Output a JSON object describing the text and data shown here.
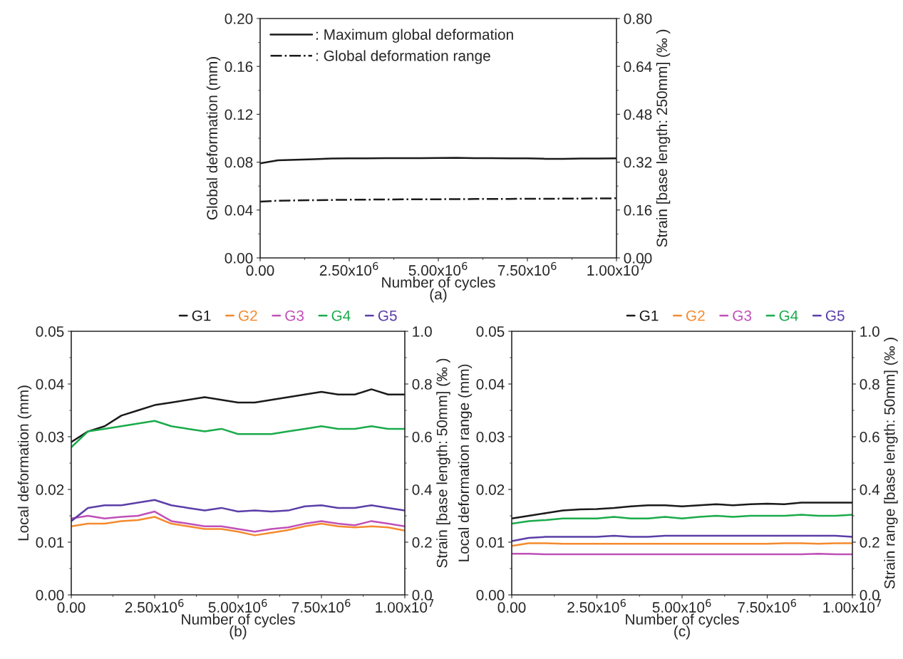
{
  "chart_data": [
    {
      "type": "line",
      "xlabel": "Number of cycles",
      "ylabel": "Global deformation (mm)",
      "y2label": "Strain [base length: 250mm] (‰ )",
      "annotations": [
        "(a)"
      ],
      "x": [
        0,
        500000,
        1000000,
        1500000,
        2000000,
        2500000,
        3000000,
        3500000,
        4000000,
        4500000,
        5000000,
        5500000,
        6000000,
        6500000,
        7000000,
        7500000,
        8000000,
        8500000,
        9000000,
        9500000,
        10000000
      ],
      "series": [
        {
          "name": ": Maximum global deformation",
          "color": "#1a1a1a",
          "line_style": "solid",
          "values": [
            0.079,
            0.0815,
            0.082,
            0.0825,
            0.083,
            0.0832,
            0.0832,
            0.0833,
            0.0833,
            0.0834,
            0.0835,
            0.0836,
            0.0833,
            0.0833,
            0.0832,
            0.0832,
            0.0828,
            0.0828,
            0.083,
            0.083,
            0.0832
          ]
        },
        {
          "name": ": Global deformation range",
          "color": "#1a1a1a",
          "line_style": "dashdot",
          "values": [
            0.047,
            0.0478,
            0.048,
            0.0482,
            0.0484,
            0.0486,
            0.0487,
            0.0488,
            0.0489,
            0.049,
            0.049,
            0.0491,
            0.0492,
            0.0492,
            0.0493,
            0.0494,
            0.0494,
            0.0495,
            0.0496,
            0.0497,
            0.0498
          ]
        }
      ],
      "xlim": [
        0,
        10000000
      ],
      "xticks": [
        {
          "value": 0,
          "label": "0.00"
        },
        {
          "value": 2500000,
          "label": "2.50x10$^{6}$"
        },
        {
          "value": 5000000,
          "label": "5.00x10$^{6}$"
        },
        {
          "value": 7500000,
          "label": "7.50x10$^{6}$"
        },
        {
          "value": 10000000,
          "label": "1.00x10$^{7}$"
        }
      ],
      "ylim": [
        0,
        0.2
      ],
      "yticks": [
        {
          "value": 0,
          "label": "0.00"
        },
        {
          "value": 0.04,
          "label": "0.04"
        },
        {
          "value": 0.08,
          "label": "0.08"
        },
        {
          "value": 0.12,
          "label": "0.12"
        },
        {
          "value": 0.16,
          "label": "0.16"
        },
        {
          "value": 0.2,
          "label": "0.20"
        }
      ],
      "y2lim": [
        0,
        0.8
      ],
      "y2ticks": [
        {
          "value": 0,
          "label": "0.00"
        },
        {
          "value": 0.16,
          "label": "0.16"
        },
        {
          "value": 0.32,
          "label": "0.32"
        },
        {
          "value": 0.48,
          "label": "0.48"
        },
        {
          "value": 0.64,
          "label": "0.64"
        },
        {
          "value": 0.8,
          "label": "0.80"
        }
      ],
      "legend": "top left",
      "grid": false
    },
    {
      "type": "line",
      "xlabel": "Number of cycles",
      "ylabel": "Local deformation (mm)",
      "y2label": "Strain [base length: 50mm] (‰ )",
      "annotations": [
        "(b)"
      ],
      "x": [
        0,
        500000,
        1000000,
        1500000,
        2000000,
        2500000,
        3000000,
        3500000,
        4000000,
        4500000,
        5000000,
        5500000,
        6000000,
        6500000,
        7000000,
        7500000,
        8000000,
        8500000,
        9000000,
        9500000,
        10000000
      ],
      "series": [
        {
          "name": "G1",
          "color": "#1a1a1a",
          "values": [
            0.029,
            0.031,
            0.032,
            0.034,
            0.035,
            0.036,
            0.0365,
            0.037,
            0.0375,
            0.037,
            0.0365,
            0.0365,
            0.037,
            0.0375,
            0.038,
            0.0385,
            0.038,
            0.038,
            0.039,
            0.038,
            0.038
          ]
        },
        {
          "name": "G2",
          "color": "#f58a2e",
          "values": [
            0.013,
            0.0135,
            0.0135,
            0.014,
            0.0142,
            0.0148,
            0.0135,
            0.013,
            0.0125,
            0.0125,
            0.012,
            0.0113,
            0.0118,
            0.0123,
            0.013,
            0.0135,
            0.013,
            0.0128,
            0.013,
            0.0128,
            0.0122
          ]
        },
        {
          "name": "G3",
          "color": "#c050b8",
          "values": [
            0.0145,
            0.015,
            0.0145,
            0.0148,
            0.015,
            0.0158,
            0.014,
            0.0135,
            0.013,
            0.013,
            0.0125,
            0.012,
            0.0125,
            0.0128,
            0.0135,
            0.014,
            0.0135,
            0.0132,
            0.014,
            0.0135,
            0.013
          ]
        },
        {
          "name": "G4",
          "color": "#1aab4b",
          "values": [
            0.028,
            0.031,
            0.0315,
            0.032,
            0.0325,
            0.033,
            0.032,
            0.0315,
            0.031,
            0.0315,
            0.0305,
            0.0305,
            0.0305,
            0.031,
            0.0315,
            0.032,
            0.0315,
            0.0315,
            0.032,
            0.0315,
            0.0315
          ]
        },
        {
          "name": "G5",
          "color": "#5b3ea8",
          "values": [
            0.014,
            0.0165,
            0.017,
            0.017,
            0.0175,
            0.018,
            0.017,
            0.0165,
            0.016,
            0.0165,
            0.0158,
            0.016,
            0.0158,
            0.016,
            0.0168,
            0.017,
            0.0165,
            0.0165,
            0.017,
            0.0165,
            0.016
          ]
        }
      ],
      "xlim": [
        0,
        10000000
      ],
      "xticks": [
        {
          "value": 0,
          "label": "0.00"
        },
        {
          "value": 2500000,
          "label": "2.50x10$^{6}$"
        },
        {
          "value": 5000000,
          "label": "5.00x10$^{6}$"
        },
        {
          "value": 7500000,
          "label": "7.50x10$^{6}$"
        },
        {
          "value": 10000000,
          "label": "1.00x10$^{7}$"
        }
      ],
      "ylim": [
        0,
        0.05
      ],
      "yticks": [
        {
          "value": 0,
          "label": "0.00"
        },
        {
          "value": 0.01,
          "label": "0.01"
        },
        {
          "value": 0.02,
          "label": "0.02"
        },
        {
          "value": 0.03,
          "label": "0.03"
        },
        {
          "value": 0.04,
          "label": "0.04"
        },
        {
          "value": 0.05,
          "label": "0.05"
        }
      ],
      "y2lim": [
        0,
        1.0
      ],
      "y2ticks": [
        {
          "value": 0,
          "label": "0.0"
        },
        0.2,
        0.4,
        0.6,
        0.8,
        {
          "value": 1.0,
          "label": "1.0"
        }
      ],
      "legend": "top right",
      "grid": false
    },
    {
      "type": "line",
      "xlabel": "Number of cycles",
      "ylabel": "Local deformation range (mm)",
      "y2label": "Strain range [base length: 50mm] (‰ )",
      "annotations": [
        "(c)"
      ],
      "x": [
        0,
        500000,
        1000000,
        1500000,
        2000000,
        2500000,
        3000000,
        3500000,
        4000000,
        4500000,
        5000000,
        5500000,
        6000000,
        6500000,
        7000000,
        7500000,
        8000000,
        8500000,
        9000000,
        9500000,
        10000000
      ],
      "series": [
        {
          "name": "G1",
          "color": "#1a1a1a",
          "values": [
            0.0145,
            0.015,
            0.0155,
            0.016,
            0.0162,
            0.0163,
            0.0165,
            0.0168,
            0.017,
            0.017,
            0.0168,
            0.017,
            0.0172,
            0.017,
            0.0172,
            0.0173,
            0.0172,
            0.0175,
            0.0175,
            0.0175,
            0.0175
          ]
        },
        {
          "name": "G2",
          "color": "#f58a2e",
          "values": [
            0.0093,
            0.0098,
            0.0098,
            0.0097,
            0.0097,
            0.0097,
            0.0097,
            0.0097,
            0.0097,
            0.0097,
            0.0097,
            0.0097,
            0.0097,
            0.0097,
            0.0097,
            0.0097,
            0.0098,
            0.0098,
            0.0097,
            0.0098,
            0.0098
          ]
        },
        {
          "name": "G3",
          "color": "#c050b8",
          "values": [
            0.0078,
            0.0078,
            0.0077,
            0.0077,
            0.0077,
            0.0077,
            0.0077,
            0.0077,
            0.0077,
            0.0077,
            0.0077,
            0.0077,
            0.0077,
            0.0077,
            0.0077,
            0.0077,
            0.0077,
            0.0077,
            0.0078,
            0.0077,
            0.0077
          ]
        },
        {
          "name": "G4",
          "color": "#1aab4b",
          "values": [
            0.0135,
            0.014,
            0.0142,
            0.0145,
            0.0145,
            0.0145,
            0.0148,
            0.0145,
            0.0145,
            0.0148,
            0.0145,
            0.0148,
            0.015,
            0.0148,
            0.015,
            0.015,
            0.015,
            0.0152,
            0.015,
            0.015,
            0.0152
          ]
        },
        {
          "name": "G5",
          "color": "#5b3ea8",
          "values": [
            0.0102,
            0.0108,
            0.011,
            0.011,
            0.011,
            0.011,
            0.0112,
            0.011,
            0.011,
            0.0112,
            0.0112,
            0.0112,
            0.0112,
            0.0112,
            0.0112,
            0.0112,
            0.0112,
            0.0112,
            0.0112,
            0.0112,
            0.011
          ]
        }
      ],
      "xlim": [
        0,
        10000000
      ],
      "xticks": [
        {
          "value": 0,
          "label": "0.00"
        },
        {
          "value": 2500000,
          "label": "2.50x10$^{6}$"
        },
        {
          "value": 5000000,
          "label": "5.00x10$^{6}$"
        },
        {
          "value": 7500000,
          "label": "7.50x10$^{6}$"
        },
        {
          "value": 10000000,
          "label": "1.00x10$^{7}$"
        }
      ],
      "ylim": [
        0,
        0.05
      ],
      "yticks": [
        {
          "value": 0,
          "label": "0.00"
        },
        {
          "value": 0.01,
          "label": "0.01"
        },
        {
          "value": 0.02,
          "label": "0.02"
        },
        {
          "value": 0.03,
          "label": "0.03"
        },
        {
          "value": 0.04,
          "label": "0.04"
        },
        {
          "value": 0.05,
          "label": "0.05"
        }
      ],
      "y2lim": [
        0,
        1.0
      ],
      "y2ticks": [
        {
          "value": 0,
          "label": "0.0"
        },
        0.2,
        0.4,
        0.6,
        0.8,
        {
          "value": 1.0,
          "label": "1.0"
        }
      ],
      "legend": "top right",
      "grid": false
    }
  ]
}
